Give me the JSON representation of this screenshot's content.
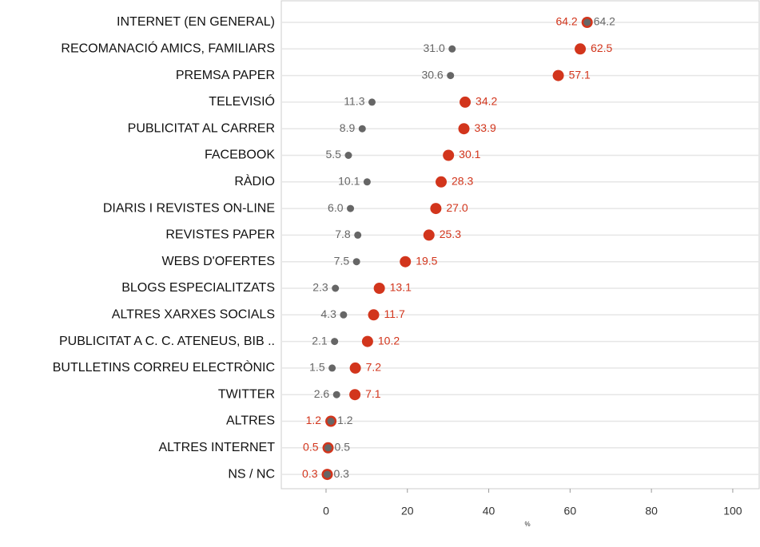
{
  "chart_data": {
    "type": "dot",
    "categories": [
      "INTERNET (EN GENERAL)",
      "RECOMANACIÓ AMICS, FAMILIARS",
      "PREMSA PAPER",
      "TELEVISIÓ",
      "PUBLICITAT AL CARRER",
      "FACEBOOK",
      "RÀDIO",
      "DIARIS I REVISTES ON-LINE",
      "REVISTES PAPER",
      "WEBS D'OFERTES",
      "BLOGS ESPECIALITZATS",
      "ALTRES XARXES SOCIALS",
      "PUBLICITAT A C. C. ATENEUS, BIB ..",
      "BUTLLETINS CORREU ELECTRÒNIC",
      "TWITTER",
      "ALTRES",
      "ALTRES INTERNET",
      "NS / NC"
    ],
    "series": [
      {
        "color": "#d2351c",
        "values": [
          64.2,
          62.5,
          57.1,
          34.2,
          33.9,
          30.1,
          28.3,
          27.0,
          25.3,
          19.5,
          13.1,
          11.7,
          10.2,
          7.2,
          7.1,
          1.2,
          0.5,
          0.3
        ],
        "value_labels": [
          "64.2",
          "62.5",
          "57.1",
          "34.2",
          "33.9",
          "30.1",
          "28.3",
          "27.0",
          "25.3",
          "19.5",
          "13.1",
          "11.7",
          "10.2",
          "7.2",
          "7.1",
          "1.2",
          "0.5",
          "0.3"
        ]
      },
      {
        "color": "#666666",
        "values": [
          64.2,
          31.0,
          30.6,
          11.3,
          8.9,
          5.5,
          10.1,
          6.0,
          7.8,
          7.5,
          2.3,
          4.3,
          2.1,
          1.5,
          2.6,
          1.2,
          0.5,
          0.3
        ],
        "value_labels": [
          "64.2",
          "31.0",
          "30.6",
          "11.3",
          "8.9",
          "5.5",
          "10.1",
          "6.0",
          "7.8",
          "7.5",
          "2.3",
          "4.3",
          "2.1",
          "1.5",
          "2.6",
          "1.2",
          "0.5",
          "0.3"
        ]
      }
    ],
    "xlabel": "%",
    "xlim": [
      -11,
      106.5
    ],
    "xticks": [
      0,
      20,
      40,
      60,
      80,
      100
    ],
    "grid": true
  }
}
